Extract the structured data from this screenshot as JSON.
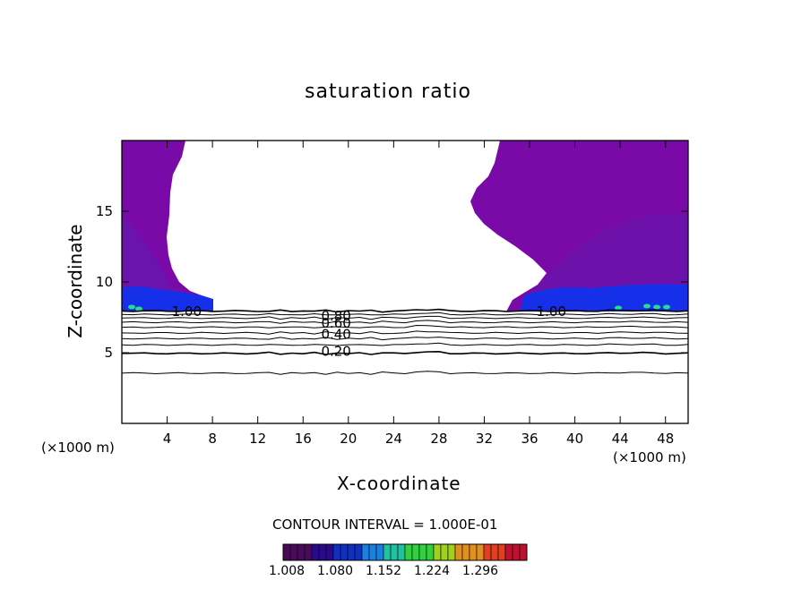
{
  "chart_data": {
    "type": "contour",
    "title": "saturation ratio",
    "xlabel": "X-coordinate",
    "ylabel": "Z-coordinate",
    "x_unit_left": "(×1000 m)",
    "x_unit_right": "(×1000 m)",
    "xlim": [
      0,
      50
    ],
    "ylim": [
      0,
      20
    ],
    "x_ticks": [
      4,
      8,
      12,
      16,
      20,
      24,
      28,
      32,
      36,
      40,
      44,
      48
    ],
    "y_ticks": [
      5,
      10,
      15
    ],
    "contour_interval_text": "CONTOUR INTERVAL = 1.000E-01",
    "contour_labels": [
      {
        "text": "1.00",
        "x": 4.4,
        "z": 7.9
      },
      {
        "text": "1.00",
        "x": 36.6,
        "z": 7.9
      },
      {
        "text": "0.80",
        "x": 17.6,
        "z": 7.6
      },
      {
        "text": "0.60",
        "x": 17.6,
        "z": 7.1
      },
      {
        "text": "0.40",
        "x": 17.6,
        "z": 6.3
      },
      {
        "text": "0.20",
        "x": 17.6,
        "z": 5.1
      }
    ],
    "contour_levels_z": [
      {
        "level": "1.0",
        "z": 7.95
      },
      {
        "level": "0.9",
        "z": 7.7
      },
      {
        "level": "0.8",
        "z": 7.45
      },
      {
        "level": "0.7",
        "z": 7.15
      },
      {
        "level": "0.6",
        "z": 6.8
      },
      {
        "level": "0.5",
        "z": 6.4
      },
      {
        "level": "0.4",
        "z": 6.0
      },
      {
        "level": "0.3",
        "z": 5.55
      },
      {
        "level": "0.2",
        "z": 4.95
      },
      {
        "level": "0.1",
        "z": 3.55
      }
    ],
    "colorbar": {
      "tick_labels": [
        "1.008",
        "1.080",
        "1.152",
        "1.224",
        "1.296"
      ],
      "colors": [
        "#4a0a5a",
        "#2a0a8a",
        "#1030c0",
        "#1a80e0",
        "#20c0a0",
        "#30d040",
        "#a0d020",
        "#e09020",
        "#e04020",
        "#c01030"
      ]
    },
    "supersaturated_fill_color": "#7a0aa8",
    "layer_colors": {
      "band": "#1530e8",
      "highlights": "#20e090"
    }
  }
}
